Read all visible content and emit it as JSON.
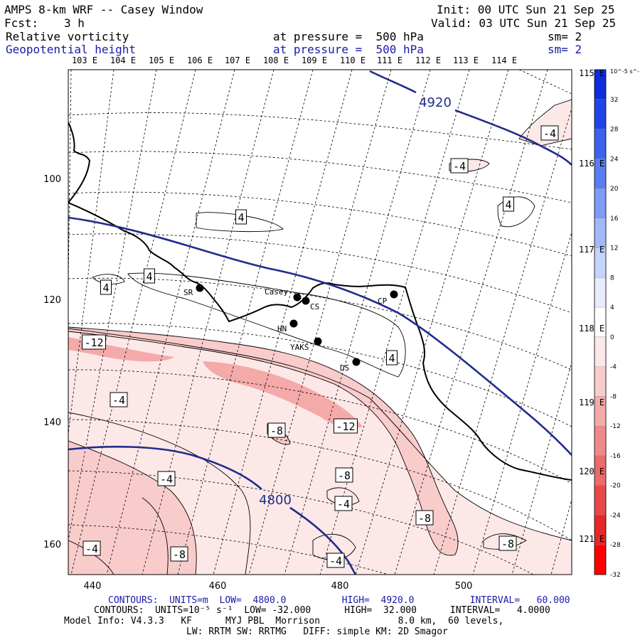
{
  "header": {
    "title": "AMPS 8-km WRF -- Casey Window",
    "init": "Init: 00 UTC Sun 21 Sep 25",
    "fcst_label": "Fcst:",
    "fcst_value": "3 h",
    "valid": "Valid: 03 UTC Sun 21 Sep 25",
    "field1": "Relative vorticity",
    "field1_level": "at pressure =  500 hPa",
    "field1_sm": "sm= 2",
    "field2": "Geopotential height",
    "field2_level": "at pressure =  500 hPa",
    "field2_sm": "sm= 2"
  },
  "axes": {
    "lon_top": [
      "103 E",
      "104 E",
      "105 E",
      "106 E",
      "107 E",
      "108 E",
      "109 E",
      "110 E",
      "111 E",
      "112 E",
      "113 E",
      "114 E"
    ],
    "lon_right": [
      "115 E",
      "116 E",
      "117 E",
      "118 E",
      "119 E",
      "120 E",
      "121 E"
    ],
    "x_ticks": [
      "440",
      "460",
      "480",
      "500"
    ],
    "y_ticks": [
      "100",
      "120",
      "140",
      "160"
    ]
  },
  "colorbar": {
    "unit": "10^-5 s^-1",
    "labels": [
      "32",
      "28",
      "24",
      "20",
      "16",
      "12",
      "8",
      "4",
      "0",
      "-4",
      "-8",
      "-12",
      "-16",
      "-20",
      "-24",
      "-28",
      "-32"
    ],
    "colors": [
      "#0b2bdc",
      "#1f45e8",
      "#3b62ee",
      "#5a7ef2",
      "#7d9cf5",
      "#a1b9f8",
      "#c5d4fb",
      "#e6ecfd",
      "#ffffff",
      "#fde8e8",
      "#f9cccc",
      "#f5aaaa",
      "#f08a8a",
      "#ec6a6a",
      "#e84848",
      "#e42828",
      "#ff0000"
    ]
  },
  "stations": [
    {
      "id": "SR",
      "label": "SR"
    },
    {
      "id": "Casey",
      "label": "Casey"
    },
    {
      "id": "CS",
      "label": "CS"
    },
    {
      "id": "CP",
      "label": "CP"
    },
    {
      "id": "HN",
      "label": "HN"
    },
    {
      "id": "YAKS",
      "label": "YAKS"
    },
    {
      "id": "DS",
      "label": "DS"
    }
  ],
  "height_labels": [
    "4920",
    "4800"
  ],
  "vorticity_labels": [
    "-4",
    "-4",
    "4",
    "4",
    "4",
    "4",
    "4",
    "-12",
    "-4",
    "-8",
    "-12",
    "-4",
    "-8",
    "-4",
    "-8",
    "-4",
    "-8",
    "-8",
    "-4"
  ],
  "footer": {
    "line1": "CONTOURS:  UNITS=m  LOW=  4800.0          HIGH=  4920.0          INTERVAL=   60.000",
    "line2": "CONTOURS:  UNITS=10⁻⁵ s⁻¹  LOW= -32.000      HIGH=  32.000      INTERVAL=   4.0000",
    "line3": "Model Info: V4.3.3   KF      MYJ PBL  Morrison              8.0 km,  60 levels,",
    "line4": "LW: RRTM SW: RRTMG   DIFF: simple KM: 2D Smagor"
  }
}
